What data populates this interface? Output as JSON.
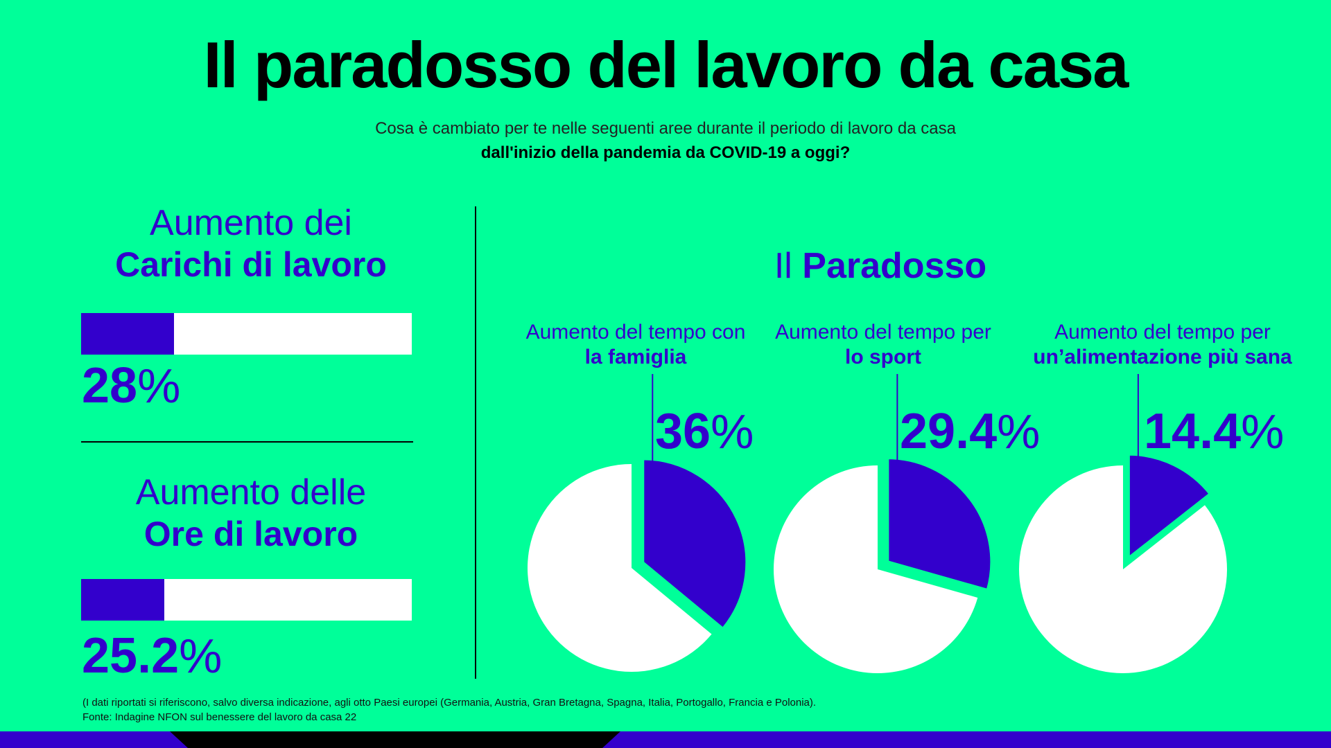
{
  "title": "Il paradosso del lavoro da casa",
  "subtitle_line1": "Cosa è cambiato per te nelle seguenti aree durante il periodo di lavoro da casa",
  "subtitle_line2": "dall'inizio della pandemia da COVID-19 a oggi?",
  "left_metrics": [
    {
      "light": "Aumento dei",
      "bold": "Carichi di lavoro",
      "value": 28,
      "value_text": "28",
      "sign": "%"
    },
    {
      "light": "Aumento delle",
      "bold": "Ore di lavoro",
      "value": 25.2,
      "value_text": "25.2",
      "sign": "%"
    }
  ],
  "paradox_title": {
    "light": "Il",
    "bold": "Paradosso"
  },
  "colors": {
    "background": "#00ff99",
    "accent": "#3300cc",
    "track": "#ffffff"
  },
  "chart_data": [
    {
      "type": "bar",
      "categories": [
        "Carichi di lavoro",
        "Ore di lavoro"
      ],
      "values": [
        28,
        25.2
      ],
      "ylim": [
        0,
        100
      ]
    },
    {
      "type": "pie",
      "values": [
        36,
        64
      ],
      "category": "la famiglia"
    },
    {
      "type": "pie",
      "values": [
        29.4,
        70.6
      ],
      "category": "lo sport"
    },
    {
      "type": "pie",
      "values": [
        14.4,
        85.6
      ],
      "category": "un’alimentazione più sana"
    }
  ],
  "pies": [
    {
      "l1": "Aumento del tempo con",
      "l2": "la famiglia",
      "value": 36,
      "value_text": "36",
      "sign": "%"
    },
    {
      "l1": "Aumento del tempo per",
      "l2": "lo sport",
      "value": 29.4,
      "value_text": "29.4",
      "sign": "%"
    },
    {
      "l1": "Aumento del tempo per",
      "l2": "un’alimentazione più sana",
      "value": 14.4,
      "value_text": "14.4",
      "sign": "%"
    }
  ],
  "footer_line1": "(I dati riportati si riferiscono, salvo diversa indicazione, agli otto Paesi europei (Germania, Austria, Gran Bretagna, Spagna, Italia, Portogallo, Francia e Polonia).",
  "footer_line2": "Fonte: Indagine NFON sul benessere del lavoro da casa 22"
}
